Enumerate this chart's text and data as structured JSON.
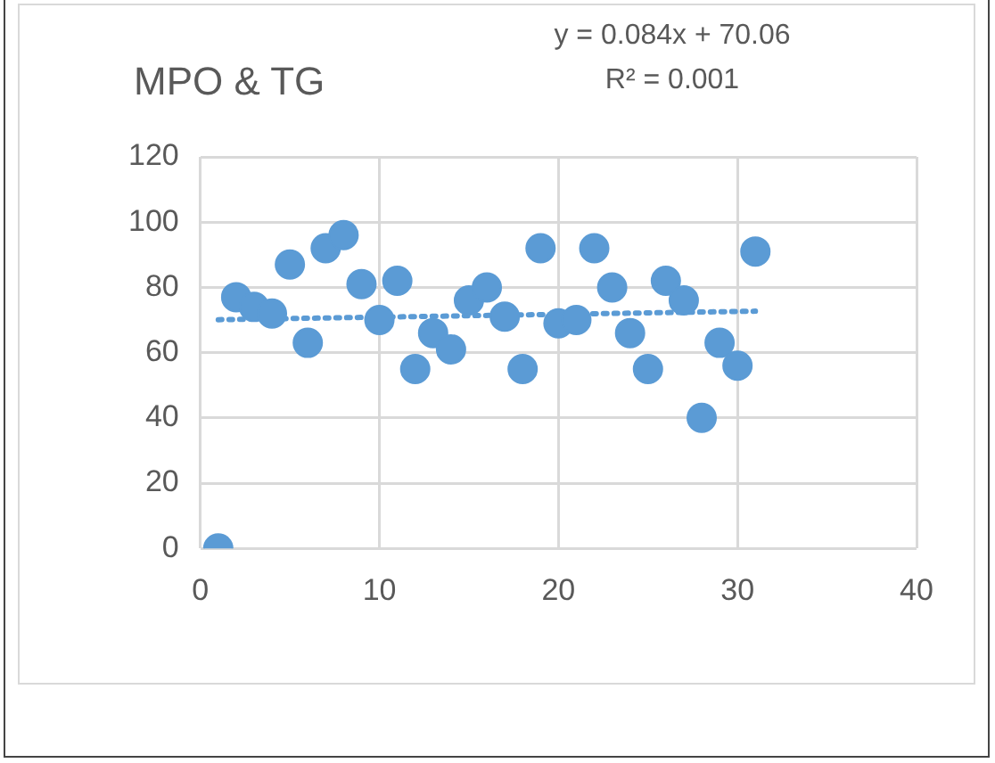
{
  "chart_data": {
    "type": "scatter",
    "title": "MPO & TG",
    "annotations": [
      "y = 0.084x + 70.06",
      "R² = 0.001"
    ],
    "xlim": [
      0,
      40
    ],
    "xticks": [
      0,
      10,
      20,
      30,
      40
    ],
    "ylim": [
      0,
      120
    ],
    "yticks": [
      0,
      20,
      40,
      60,
      80,
      100,
      120
    ],
    "grid": true,
    "marker": "circle",
    "series": [
      {
        "color": "#5b9bd5",
        "x": [
          1,
          2,
          3,
          4,
          5,
          6,
          7,
          8,
          9,
          10,
          11,
          12,
          13,
          14,
          15,
          16,
          17,
          18,
          19,
          20,
          21,
          22,
          23,
          24,
          25,
          26,
          27,
          28,
          29,
          30,
          31
        ],
        "values": [
          0,
          77,
          74,
          72,
          87,
          63,
          92,
          96,
          81,
          70,
          82,
          55,
          66,
          61,
          76,
          80,
          71,
          55,
          92,
          69,
          70,
          92,
          80,
          66,
          55,
          82,
          76,
          40,
          63,
          56,
          91
        ]
      },
      {
        "type": "line",
        "color": "#5b9bd5",
        "line_style": "dotted",
        "marker": "none",
        "x": [
          1,
          31
        ],
        "values": [
          70.1,
          72.7
        ]
      }
    ]
  }
}
